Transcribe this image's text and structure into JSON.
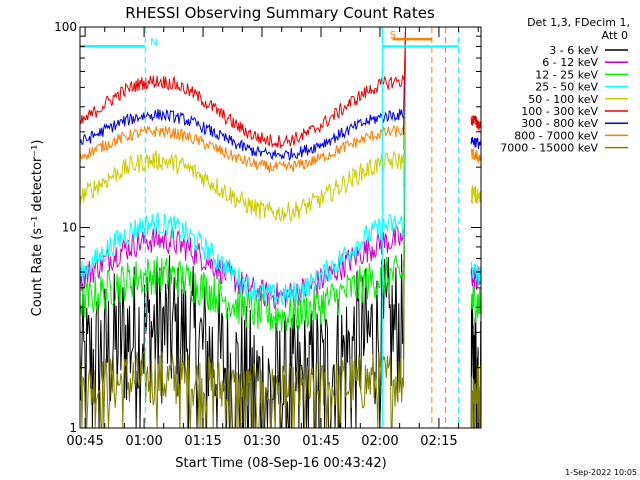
{
  "chart_data": {
    "type": "line",
    "title": "RHESSI Observing Summary Count Rates",
    "xlabel": "Start Time (08-Sep-16 00:43:42)",
    "ylabel": "Count Rate (s⁻¹ detector⁻¹)",
    "yscale": "log",
    "ylim": [
      1,
      100
    ],
    "xlim_minutes": [
      0,
      102
    ],
    "y_ticks": [
      {
        "value": 1,
        "label": "1"
      },
      {
        "value": 10,
        "label": "10"
      },
      {
        "value": 100,
        "label": "100"
      }
    ],
    "x_ticks": [
      {
        "minute": 1.3,
        "label": "00:45"
      },
      {
        "minute": 16.3,
        "label": "01:00"
      },
      {
        "minute": 31.3,
        "label": "01:15"
      },
      {
        "minute": 46.3,
        "label": "01:30"
      },
      {
        "minute": 61.3,
        "label": "01:45"
      },
      {
        "minute": 76.3,
        "label": "02:00"
      },
      {
        "minute": 91.3,
        "label": "02:15"
      }
    ],
    "legend_header": [
      "Det 1,3, FDecim 1,",
      "Att 0"
    ],
    "series": [
      {
        "name": "3 - 6 keV",
        "color": "#000000",
        "base": 2.2,
        "amp": 0.15,
        "noise": 0.38,
        "floor": 1.3
      },
      {
        "name": "6 - 12 keV",
        "color": "#cc00cc",
        "base": 6.3,
        "amp": 0.14,
        "noise": 0.07
      },
      {
        "name": "12 - 25 keV",
        "color": "#00ee00",
        "base": 4.6,
        "amp": 0.1,
        "noise": 0.1
      },
      {
        "name": "25 - 50 keV",
        "color": "#00ffff",
        "base": 6.9,
        "amp": 0.18,
        "noise": 0.06
      },
      {
        "name": "50 - 100 keV",
        "color": "#cccc00",
        "base": 16.0,
        "amp": 0.13,
        "noise": 0.05
      },
      {
        "name": "100 - 300 keV",
        "color": "#ee0000",
        "base": 38.0,
        "amp": 0.15,
        "noise": 0.035
      },
      {
        "name": "300 - 800 keV",
        "color": "#0000ee",
        "base": 29.0,
        "amp": 0.1,
        "noise": 0.03
      },
      {
        "name": "800 - 7000 keV",
        "color": "#ff7f00",
        "base": 24.5,
        "amp": 0.09,
        "noise": 0.03
      },
      {
        "name": "7000 - 15000 keV",
        "color": "#808000",
        "base": 1.6,
        "amp": 0.04,
        "noise": 0.15,
        "floor": 1.25
      }
    ],
    "data_gap_minutes": [
      82.3,
      99.5
    ],
    "annotations": [
      {
        "label": "N",
        "color": "#00ffff",
        "minute": 16.6,
        "start": 0,
        "end": 16.6,
        "value": 80
      },
      {
        "label": "S",
        "color": "#ff7f00",
        "minute": 77.5,
        "start": 79.5,
        "end": 89.5,
        "value": 87
      }
    ],
    "markers": [
      {
        "minute": 16.6,
        "color": "#00ffff"
      },
      {
        "minute": 76.9,
        "color": "#00ffff"
      },
      {
        "minute": 89.5,
        "color": "#ff7f00"
      },
      {
        "minute": 93.0,
        "color": "#ff7f00"
      },
      {
        "minute": 96.3,
        "color": "#00ffff"
      }
    ],
    "saa_bar": {
      "color": "#00ffff",
      "value": 80,
      "segments": [
        [
          0,
          16.6
        ],
        [
          76.9,
          96.3
        ]
      ]
    },
    "timestamp": "1-Sep-2022 10:05"
  }
}
